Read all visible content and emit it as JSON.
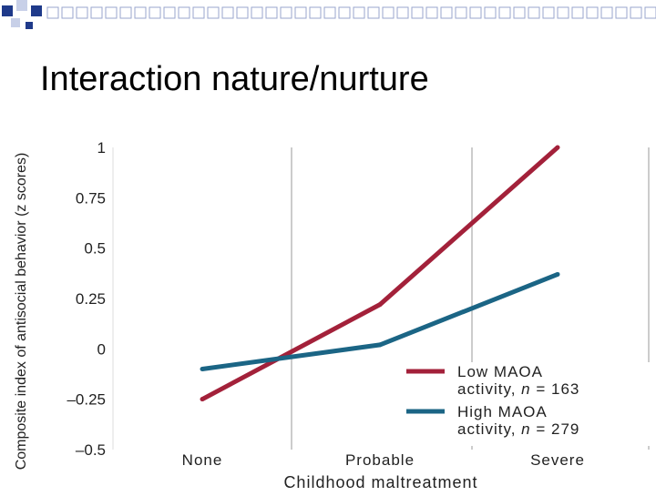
{
  "slide": {
    "title": "Interaction nature/nurture"
  },
  "colors": {
    "deco_dark": "#1f3a8a",
    "deco_light": "#c8d0e8",
    "grid": "#cccccc",
    "low": "#a3213a",
    "high": "#1b6585"
  },
  "chart_data": {
    "type": "line",
    "categories": [
      "None",
      "Probable",
      "Severe"
    ],
    "series": [
      {
        "name": "Low MAOA activity, n = 163",
        "values": [
          -0.25,
          0.22,
          1.0
        ],
        "color": "#a3213a"
      },
      {
        "name": "High MAOA activity, n = 279",
        "values": [
          -0.1,
          0.02,
          0.37
        ],
        "color": "#1b6585"
      }
    ],
    "xlabel": "Childhood maltreatment",
    "ylabel": "Composite index of antisocial behavior (z scores)",
    "ylim": [
      -0.5,
      1
    ],
    "yticks": [
      "1",
      "0.75",
      "0.5",
      "0.25",
      "0",
      "–0.25",
      "–0.5"
    ],
    "grid": "vertical",
    "legend_position": "bottom-right",
    "legend": [
      {
        "line1": "Low MAOA",
        "line2_prefix": "activity, ",
        "n_var": "n",
        "line2_suffix": " = 163"
      },
      {
        "line1": "High MAOA",
        "line2_prefix": "activity, ",
        "n_var": "n",
        "line2_suffix": " = 279"
      }
    ]
  }
}
